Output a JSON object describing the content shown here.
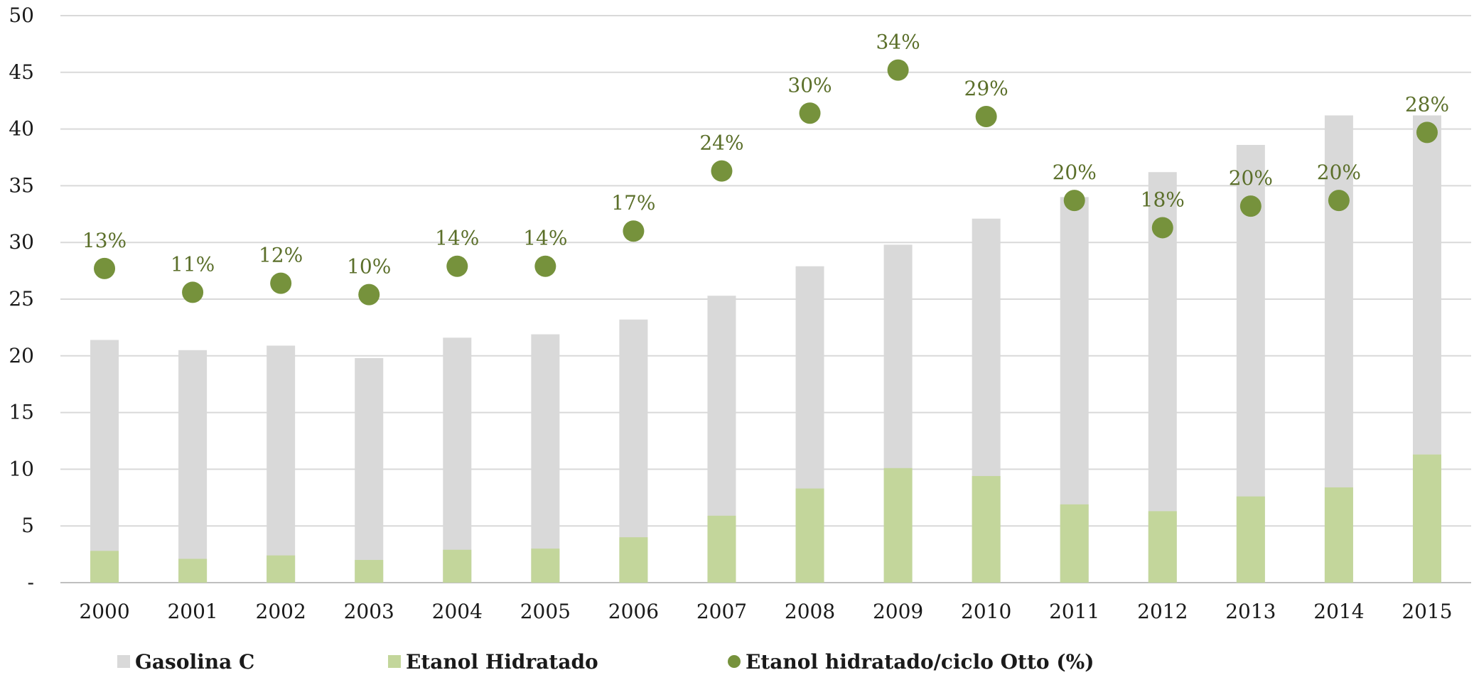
{
  "chart_data": {
    "type": "bar",
    "stacked": false,
    "categories": [
      "2000",
      "2001",
      "2002",
      "2003",
      "2004",
      "2005",
      "2006",
      "2007",
      "2008",
      "2009",
      "2010",
      "2011",
      "2012",
      "2013",
      "2014",
      "2015"
    ],
    "ylim": [
      0,
      50
    ],
    "yticks": [
      {
        "value": 0,
        "label": "-"
      },
      {
        "value": 5,
        "label": "5"
      },
      {
        "value": 10,
        "label": "10"
      },
      {
        "value": 15,
        "label": "15"
      },
      {
        "value": 20,
        "label": "20"
      },
      {
        "value": 25,
        "label": "25"
      },
      {
        "value": 30,
        "label": "30"
      },
      {
        "value": 35,
        "label": "35"
      },
      {
        "value": 40,
        "label": "40"
      },
      {
        "value": 45,
        "label": "45"
      },
      {
        "value": 50,
        "label": "50"
      }
    ],
    "grid": true,
    "legend_position": "bottom",
    "series": [
      {
        "name": "Gasolina C",
        "kind": "bar",
        "color": "#d9d9d9",
        "values": [
          21.4,
          20.5,
          20.9,
          19.8,
          21.6,
          21.9,
          23.2,
          25.3,
          27.9,
          29.8,
          32.1,
          34.0,
          36.2,
          38.6,
          41.2,
          41.2
        ]
      },
      {
        "name": "Etanol Hidratado",
        "kind": "bar",
        "color": "#c3d69b",
        "values": [
          2.8,
          2.1,
          2.4,
          2.0,
          2.9,
          3.0,
          4.0,
          5.9,
          8.3,
          10.1,
          9.4,
          6.9,
          6.3,
          7.6,
          8.4,
          11.3
        ]
      },
      {
        "name": "Etanol hidratado/ciclo Otto (%)",
        "kind": "scatter",
        "color": "#76923c",
        "values": [
          27.7,
          25.6,
          26.4,
          25.4,
          27.9,
          27.9,
          31.0,
          36.3,
          41.4,
          45.2,
          41.1,
          33.7,
          31.3,
          33.2,
          33.7,
          39.7
        ],
        "labels": [
          "13%",
          "11%",
          "12%",
          "10%",
          "14%",
          "14%",
          "17%",
          "24%",
          "30%",
          "34%",
          "29%",
          "20%",
          "18%",
          "20%",
          "20%",
          "28%"
        ]
      }
    ]
  }
}
